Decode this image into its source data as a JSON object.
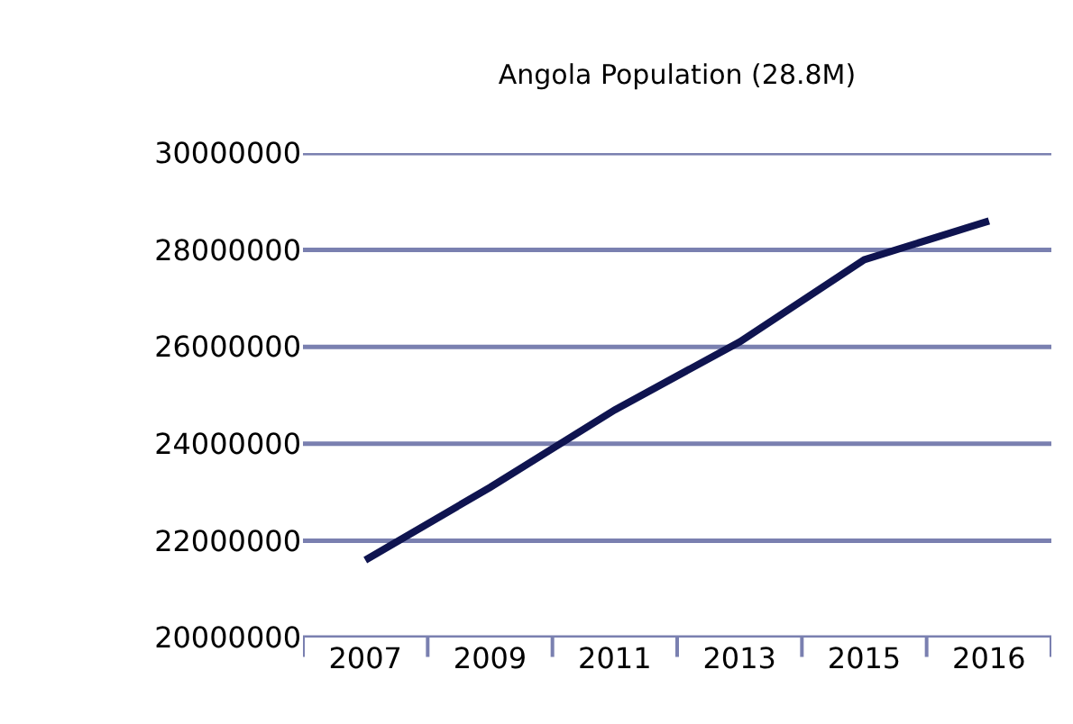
{
  "chart_data": {
    "type": "line",
    "title": "Angola Population (28.8M)",
    "categories": [
      "2007",
      "2009",
      "2011",
      "2013",
      "2015",
      "2016"
    ],
    "series": [
      {
        "color": "#0f1450",
        "values": [
          21600000,
          23100000,
          24700000,
          26100000,
          27800000,
          28600000
        ]
      }
    ],
    "ylim": [
      20000000,
      30000000
    ],
    "yticks": [
      20000000,
      22000000,
      24000000,
      26000000,
      28000000,
      30000000
    ],
    "grid": "y",
    "marker": "none",
    "line_style": "solid"
  }
}
